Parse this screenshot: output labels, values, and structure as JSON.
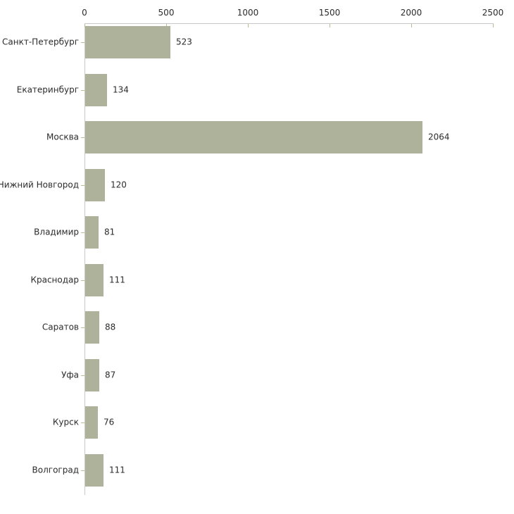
{
  "chart_data": {
    "type": "bar",
    "orientation": "horizontal",
    "title": "",
    "xlabel": "",
    "ylabel": "",
    "categories": [
      "Санкт-Петербург",
      "Екатеринбург",
      "Москва",
      "Нижний Новгород",
      "Владимир",
      "Краснодар",
      "Саратов",
      "Уфа",
      "Курск",
      "Волгоград"
    ],
    "values": [
      523,
      134,
      2064,
      120,
      81,
      111,
      88,
      87,
      76,
      111
    ],
    "value_labels": [
      "523",
      "134",
      "2064",
      "120",
      "81",
      "111",
      "88",
      "87",
      "76",
      "111"
    ],
    "x_ticks": [
      0,
      500,
      1000,
      1500,
      2000,
      2500
    ],
    "x_tick_labels": [
      "0",
      "500",
      "1000",
      "1500",
      "2000",
      "2500"
    ],
    "xlim": [
      0,
      2500
    ],
    "grid": false,
    "legend": false,
    "axis_position": "top-left",
    "colors": {
      "bar_fill": "#aeb29a",
      "axis_line": "#c9c9c9",
      "tick_mark": "#b8bc8e",
      "text": "#2b2b2b",
      "background": "#ffffff"
    }
  }
}
